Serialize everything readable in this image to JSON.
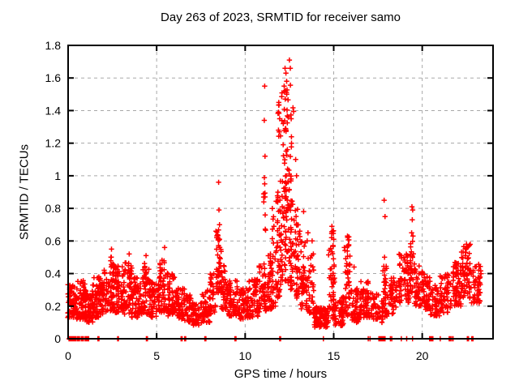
{
  "chart_data": {
    "type": "scatter",
    "title": "Day 263 of 2023, SRMTID for receiver samo",
    "xlabel": "GPS time / hours",
    "ylabel": "SRMTID / TECUs",
    "xlim": [
      0,
      24
    ],
    "ylim": [
      0,
      1.8
    ],
    "xticks": [
      {
        "v": 0,
        "label": "0"
      },
      {
        "v": 5,
        "label": "5"
      },
      {
        "v": 10,
        "label": "10"
      },
      {
        "v": 15,
        "label": "15"
      },
      {
        "v": 20,
        "label": "20"
      }
    ],
    "yticks": [
      {
        "v": 0,
        "label": "0"
      },
      {
        "v": 0.2,
        "label": "0.2"
      },
      {
        "v": 0.4,
        "label": "0.4"
      },
      {
        "v": 0.6,
        "label": "0.6"
      },
      {
        "v": 0.8,
        "label": "0.8"
      },
      {
        "v": 1,
        "label": "1"
      },
      {
        "v": 1.2,
        "label": "1.2"
      },
      {
        "v": 1.4,
        "label": "1.4"
      },
      {
        "v": 1.6,
        "label": "1.6"
      },
      {
        "v": 1.8,
        "label": "1.8"
      }
    ],
    "grid": {
      "show": true,
      "color": "#a8a8a8",
      "dash": [
        4,
        4
      ]
    },
    "marker": {
      "shape": "plus",
      "color": "#ff0000",
      "size": 6.4,
      "stroke_width": 1.5
    },
    "border_color": "#000000",
    "background": "#ffffff",
    "legend": null,
    "max_value": 1.71,
    "max_value_hour": 12.5,
    "bands_format": "[hour_start, hour_end, value_min, value_max, point_count, bottom_bias_exponent]",
    "density_bands": [
      [
        0.0,
        0.5,
        0.13,
        0.34,
        70,
        1.3
      ],
      [
        0.5,
        1.0,
        0.12,
        0.36,
        70,
        1.3
      ],
      [
        1.0,
        1.4,
        0.1,
        0.3,
        45,
        1.3
      ],
      [
        1.4,
        1.8,
        0.13,
        0.38,
        50,
        1.3
      ],
      [
        1.8,
        2.25,
        0.15,
        0.43,
        55,
        1.3
      ],
      [
        2.25,
        2.65,
        0.17,
        0.52,
        60,
        1.3
      ],
      [
        2.65,
        3.1,
        0.16,
        0.45,
        55,
        1.3
      ],
      [
        3.1,
        3.6,
        0.15,
        0.48,
        60,
        1.3
      ],
      [
        3.6,
        4.25,
        0.13,
        0.38,
        70,
        1.3
      ],
      [
        4.25,
        4.6,
        0.15,
        0.47,
        40,
        1.3
      ],
      [
        4.6,
        5.1,
        0.13,
        0.36,
        55,
        1.3
      ],
      [
        5.1,
        5.65,
        0.16,
        0.5,
        60,
        1.3
      ],
      [
        5.65,
        6.1,
        0.14,
        0.4,
        50,
        1.3
      ],
      [
        6.1,
        6.6,
        0.12,
        0.31,
        55,
        1.3
      ],
      [
        6.6,
        7.05,
        0.1,
        0.27,
        45,
        1.3
      ],
      [
        7.05,
        7.55,
        0.08,
        0.23,
        45,
        1.3
      ],
      [
        7.55,
        8.0,
        0.1,
        0.3,
        45,
        1.3
      ],
      [
        8.0,
        8.3,
        0.15,
        0.4,
        35,
        1.3
      ],
      [
        8.3,
        8.65,
        0.28,
        0.68,
        50,
        1.2
      ],
      [
        8.65,
        9.0,
        0.18,
        0.46,
        40,
        1.3
      ],
      [
        9.0,
        9.6,
        0.14,
        0.36,
        60,
        1.3
      ],
      [
        9.6,
        10.2,
        0.12,
        0.31,
        60,
        1.3
      ],
      [
        10.2,
        10.8,
        0.13,
        0.37,
        60,
        1.3
      ],
      [
        10.8,
        11.3,
        0.17,
        0.46,
        55,
        1.3
      ],
      [
        11.05,
        11.15,
        0.5,
        1.0,
        7,
        1
      ],
      [
        11.3,
        11.75,
        0.18,
        0.52,
        50,
        1.3
      ],
      [
        11.5,
        11.72,
        0.52,
        0.8,
        7,
        1
      ],
      [
        11.75,
        12.05,
        0.25,
        0.92,
        50,
        1.4
      ],
      [
        11.85,
        12.02,
        0.92,
        1.45,
        9,
        1
      ],
      [
        12.05,
        12.45,
        0.35,
        1.3,
        75,
        1.5
      ],
      [
        12.08,
        12.42,
        1.3,
        1.58,
        16,
        1
      ],
      [
        12.45,
        12.75,
        0.3,
        1.05,
        50,
        1.4
      ],
      [
        12.5,
        12.72,
        1.05,
        1.62,
        7,
        1
      ],
      [
        12.75,
        13.1,
        0.25,
        0.82,
        45,
        1.4
      ],
      [
        13.1,
        13.45,
        0.18,
        0.6,
        40,
        1.3
      ],
      [
        13.45,
        13.9,
        0.15,
        0.52,
        40,
        1.3
      ],
      [
        13.9,
        14.3,
        0.07,
        0.2,
        50,
        1.2
      ],
      [
        14.3,
        14.7,
        0.07,
        0.19,
        42,
        1.2
      ],
      [
        14.7,
        15.1,
        0.12,
        0.56,
        48,
        1.4
      ],
      [
        14.85,
        15.02,
        0.56,
        0.7,
        7,
        1
      ],
      [
        15.1,
        15.6,
        0.08,
        0.26,
        50,
        1.2
      ],
      [
        15.6,
        15.95,
        0.14,
        0.56,
        42,
        1.3
      ],
      [
        15.68,
        15.88,
        0.56,
        0.64,
        9,
        1
      ],
      [
        15.95,
        16.5,
        0.1,
        0.31,
        55,
        1.3
      ],
      [
        16.5,
        17.1,
        0.13,
        0.36,
        55,
        1.3
      ],
      [
        17.1,
        17.6,
        0.12,
        0.28,
        35,
        1.3
      ],
      [
        17.6,
        17.78,
        0.1,
        0.24,
        12,
        1.3
      ],
      [
        17.78,
        18.15,
        0.12,
        0.45,
        40,
        1.2
      ],
      [
        18.15,
        18.6,
        0.15,
        0.4,
        40,
        1.3
      ],
      [
        18.6,
        19.3,
        0.22,
        0.52,
        70,
        1.3
      ],
      [
        19.3,
        19.55,
        0.28,
        0.6,
        28,
        1.2
      ],
      [
        19.55,
        20.1,
        0.2,
        0.46,
        55,
        1.3
      ],
      [
        20.1,
        20.45,
        0.18,
        0.4,
        38,
        1.3
      ],
      [
        20.45,
        21.0,
        0.14,
        0.33,
        45,
        1.3
      ],
      [
        21.0,
        21.6,
        0.16,
        0.4,
        58,
        1.3
      ],
      [
        21.6,
        22.2,
        0.2,
        0.47,
        62,
        1.3
      ],
      [
        22.2,
        22.75,
        0.25,
        0.58,
        62,
        1.25
      ],
      [
        22.75,
        23.3,
        0.22,
        0.46,
        50,
        1.3
      ]
    ],
    "outlier_points": [
      [
        2.45,
        0.55
      ],
      [
        3.45,
        0.52
      ],
      [
        4.4,
        0.51
      ],
      [
        5.45,
        0.56
      ],
      [
        8.5,
        0.96
      ],
      [
        8.52,
        0.79
      ],
      [
        8.55,
        0.7
      ],
      [
        11.1,
        1.55
      ],
      [
        11.08,
        1.34
      ],
      [
        11.12,
        1.12
      ],
      [
        11.1,
        0.95
      ],
      [
        11.05,
        0.84
      ],
      [
        11.13,
        0.76
      ],
      [
        11.9,
        1.45
      ],
      [
        11.95,
        1.35
      ],
      [
        11.88,
        1.28
      ],
      [
        12.5,
        1.71
      ],
      [
        12.25,
        1.66
      ],
      [
        12.55,
        1.66
      ],
      [
        12.3,
        1.63
      ],
      [
        12.2,
        1.55
      ],
      [
        12.35,
        1.5
      ],
      [
        12.6,
        1.35
      ],
      [
        12.15,
        1.32
      ],
      [
        12.62,
        1.2
      ],
      [
        12.85,
        1.1
      ],
      [
        12.9,
        1.0
      ],
      [
        13.3,
        0.78
      ],
      [
        13.55,
        0.65
      ],
      [
        13.5,
        0.6
      ],
      [
        13.78,
        0.6
      ],
      [
        13.85,
        0.52
      ],
      [
        14.9,
        0.69
      ],
      [
        14.95,
        0.66
      ],
      [
        14.88,
        0.62
      ],
      [
        15.78,
        0.63
      ],
      [
        16.15,
        0.44
      ],
      [
        17.85,
        0.85
      ],
      [
        17.9,
        0.75
      ],
      [
        17.87,
        0.5
      ],
      [
        19.42,
        0.81
      ],
      [
        19.46,
        0.79
      ],
      [
        19.44,
        0.73
      ],
      [
        19.4,
        0.65
      ],
      [
        19.48,
        0.63
      ],
      [
        22.5,
        0.58
      ],
      [
        22.55,
        0.56
      ],
      [
        22.45,
        0.53
      ]
    ],
    "rug_points_x": [
      0.05,
      0.09,
      0.13,
      0.17,
      0.21,
      0.25,
      0.29,
      0.33,
      0.38,
      0.44,
      0.52,
      0.56,
      0.6,
      0.64,
      0.74,
      0.78,
      0.82,
      0.86,
      0.96,
      1.0,
      1.04,
      1.08,
      1.12,
      1.16,
      1.68,
      1.74,
      2.8,
      2.84,
      4.42,
      4.48,
      6.38,
      6.44,
      6.58,
      6.64,
      7.72,
      7.78,
      9.42,
      9.48,
      11.95,
      12.0,
      14.42,
      16.95,
      17.05,
      17.55,
      17.6,
      17.65,
      17.7,
      17.75,
      17.8,
      17.85,
      17.9,
      18.2,
      18.28,
      18.82,
      19.12,
      19.45,
      20.42,
      20.48,
      20.54,
      20.6,
      21.02,
      21.52,
      21.58,
      21.66,
      21.74,
      22.55,
      22.61,
      22.8,
      22.87
    ]
  }
}
